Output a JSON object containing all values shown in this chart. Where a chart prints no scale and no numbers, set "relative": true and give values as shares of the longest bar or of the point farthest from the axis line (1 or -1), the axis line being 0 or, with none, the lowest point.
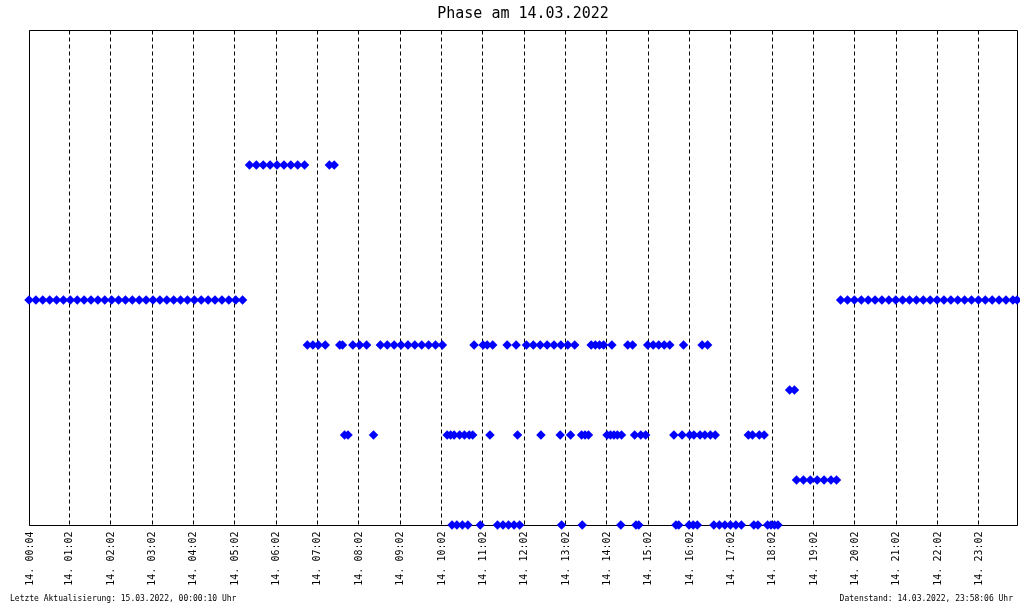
{
  "chart_data": {
    "type": "scatter",
    "title": "Phase am 14.03.2022",
    "color": "#0000ff",
    "marker": "diamond",
    "grid": "x",
    "relative": true,
    "annotations": [
      "Letzte Aktualisierung: 15.03.2022, 00:00:10 Uhr",
      "Datenstand: 14.03.2022, 23:58:06 Uhr"
    ],
    "xlim": [
      "2022-03-14T00:04",
      "2022-03-14T23:58"
    ],
    "xticks": [
      {
        "value": "2022-03-14T00:04",
        "label": "14. 00:04"
      },
      {
        "value": "2022-03-14T01:02",
        "label": "14. 01:02"
      },
      {
        "value": "2022-03-14T02:02",
        "label": "14. 02:02"
      },
      {
        "value": "2022-03-14T03:02",
        "label": "14. 03:02"
      },
      {
        "value": "2022-03-14T04:02",
        "label": "14. 04:02"
      },
      {
        "value": "2022-03-14T05:02",
        "label": "14. 05:02"
      },
      {
        "value": "2022-03-14T06:02",
        "label": "14. 06:02"
      },
      {
        "value": "2022-03-14T07:02",
        "label": "14. 07:02"
      },
      {
        "value": "2022-03-14T08:02",
        "label": "14. 08:02"
      },
      {
        "value": "2022-03-14T09:02",
        "label": "14. 09:02"
      },
      {
        "value": "2022-03-14T10:02",
        "label": "14. 10:02"
      },
      {
        "value": "2022-03-14T11:02",
        "label": "14. 11:02"
      },
      {
        "value": "2022-03-14T12:02",
        "label": "14. 12:02"
      },
      {
        "value": "2022-03-14T13:02",
        "label": "14. 13:02"
      },
      {
        "value": "2022-03-14T14:02",
        "label": "14. 14:02"
      },
      {
        "value": "2022-03-14T15:02",
        "label": "14. 15:02"
      },
      {
        "value": "2022-03-14T16:02",
        "label": "14. 16:02"
      },
      {
        "value": "2022-03-14T17:02",
        "label": "14. 17:02"
      },
      {
        "value": "2022-03-14T18:02",
        "label": "14. 18:02"
      },
      {
        "value": "2022-03-14T19:02",
        "label": "14. 19:02"
      },
      {
        "value": "2022-03-14T20:02",
        "label": "14. 20:02"
      },
      {
        "value": "2022-03-14T21:02",
        "label": "14. 21:02"
      },
      {
        "value": "2022-03-14T22:02",
        "label": "14. 22:02"
      },
      {
        "value": "2022-03-14T23:02",
        "label": "14. 23:02"
      }
    ],
    "x": [
      "2022-03-14T00:04",
      "2022-03-14T00:14",
      "2022-03-14T00:24",
      "2022-03-14T00:34",
      "2022-03-14T00:44",
      "2022-03-14T00:54",
      "2022-03-14T01:04",
      "2022-03-14T01:14",
      "2022-03-14T01:24",
      "2022-03-14T01:34",
      "2022-03-14T01:44",
      "2022-03-14T01:54",
      "2022-03-14T02:04",
      "2022-03-14T02:14",
      "2022-03-14T02:24",
      "2022-03-14T02:34",
      "2022-03-14T02:44",
      "2022-03-14T02:54",
      "2022-03-14T03:04",
      "2022-03-14T03:14",
      "2022-03-14T03:24",
      "2022-03-14T03:34",
      "2022-03-14T03:44",
      "2022-03-14T03:54",
      "2022-03-14T04:04",
      "2022-03-14T04:14",
      "2022-03-14T04:24",
      "2022-03-14T04:34",
      "2022-03-14T04:44",
      "2022-03-14T04:54",
      "2022-03-14T05:04",
      "2022-03-14T05:14",
      "2022-03-14T05:24",
      "2022-03-14T05:34",
      "2022-03-14T05:44",
      "2022-03-14T05:54",
      "2022-03-14T06:04",
      "2022-03-14T06:14",
      "2022-03-14T06:24",
      "2022-03-14T06:34",
      "2022-03-14T06:44",
      "2022-03-14T06:48",
      "2022-03-14T06:56",
      "2022-03-14T07:04",
      "2022-03-14T07:14",
      "2022-03-14T07:20",
      "2022-03-14T07:27",
      "2022-03-14T07:35",
      "2022-03-14T07:39",
      "2022-03-14T07:42",
      "2022-03-14T07:47",
      "2022-03-14T07:54",
      "2022-03-14T08:04",
      "2022-03-14T08:14",
      "2022-03-14T08:24",
      "2022-03-14T08:34",
      "2022-03-14T08:44",
      "2022-03-14T08:54",
      "2022-03-14T09:04",
      "2022-03-14T09:14",
      "2022-03-14T09:24",
      "2022-03-14T09:34",
      "2022-03-14T09:44",
      "2022-03-14T09:54",
      "2022-03-14T10:04",
      "2022-03-14T10:11",
      "2022-03-14T10:16",
      "2022-03-14T10:18",
      "2022-03-14T10:21",
      "2022-03-14T10:25",
      "2022-03-14T10:29",
      "2022-03-14T10:33",
      "2022-03-14T10:36",
      "2022-03-14T10:41",
      "2022-03-14T10:43",
      "2022-03-14T10:48",
      "2022-03-14T10:50",
      "2022-03-14T10:59",
      "2022-03-14T11:03",
      "2022-03-14T11:09",
      "2022-03-14T11:13",
      "2022-03-14T11:17",
      "2022-03-14T11:24",
      "2022-03-14T11:32",
      "2022-03-14T11:38",
      "2022-03-14T11:40",
      "2022-03-14T11:48",
      "2022-03-14T11:51",
      "2022-03-14T11:53",
      "2022-03-14T11:56",
      "2022-03-14T12:06",
      "2022-03-14T12:16",
      "2022-03-14T12:26",
      "2022-03-14T12:27",
      "2022-03-14T12:36",
      "2022-03-14T12:46",
      "2022-03-14T12:55",
      "2022-03-14T12:56",
      "2022-03-14T12:57",
      "2022-03-14T13:06",
      "2022-03-14T13:10",
      "2022-03-14T13:16",
      "2022-03-14T13:26",
      "2022-03-14T13:27",
      "2022-03-14T13:31",
      "2022-03-14T13:36",
      "2022-03-14T13:40",
      "2022-03-14T13:46",
      "2022-03-14T13:52",
      "2022-03-14T13:58",
      "2022-03-14T14:03",
      "2022-03-14T14:08",
      "2022-03-14T14:10",
      "2022-03-14T14:13",
      "2022-03-14T14:18",
      "2022-03-14T14:23",
      "2022-03-14T14:24",
      "2022-03-14T14:33",
      "2022-03-14T14:40",
      "2022-03-14T14:43",
      "2022-03-14T14:45",
      "2022-03-14T14:49",
      "2022-03-14T14:52",
      "2022-03-14T14:59",
      "2022-03-14T15:02",
      "2022-03-14T15:10",
      "2022-03-14T15:18",
      "2022-03-14T15:26",
      "2022-03-14T15:34",
      "2022-03-14T15:40",
      "2022-03-14T15:43",
      "2022-03-14T15:47",
      "2022-03-14T15:52",
      "2022-03-14T15:54",
      "2022-03-14T16:02",
      "2022-03-14T16:03",
      "2022-03-14T16:08",
      "2022-03-14T16:09",
      "2022-03-14T16:14",
      "2022-03-14T16:18",
      "2022-03-14T16:21",
      "2022-03-14T16:25",
      "2022-03-14T16:29",
      "2022-03-14T16:33",
      "2022-03-14T16:38",
      "2022-03-14T16:40",
      "2022-03-14T16:46",
      "2022-03-14T16:54",
      "2022-03-14T17:02",
      "2022-03-14T17:10",
      "2022-03-14T17:18",
      "2022-03-14T17:28",
      "2022-03-14T17:34",
      "2022-03-14T17:36",
      "2022-03-14T17:42",
      "2022-03-14T17:44",
      "2022-03-14T17:51",
      "2022-03-14T17:56",
      "2022-03-14T18:01",
      "2022-03-14T18:06",
      "2022-03-14T18:11",
      "2022-03-14T18:28",
      "2022-03-14T18:35",
      "2022-03-14T18:38",
      "2022-03-14T18:48",
      "2022-03-14T18:58",
      "2022-03-14T19:08",
      "2022-03-14T19:18",
      "2022-03-14T19:28",
      "2022-03-14T19:36",
      "2022-03-14T19:42",
      "2022-03-14T19:52",
      "2022-03-14T20:02",
      "2022-03-14T20:12",
      "2022-03-14T20:22",
      "2022-03-14T20:32",
      "2022-03-14T20:42",
      "2022-03-14T20:52",
      "2022-03-14T21:02",
      "2022-03-14T21:12",
      "2022-03-14T21:22",
      "2022-03-14T21:32",
      "2022-03-14T21:42",
      "2022-03-14T21:52",
      "2022-03-14T22:02",
      "2022-03-14T22:12",
      "2022-03-14T22:22",
      "2022-03-14T22:32",
      "2022-03-14T22:42",
      "2022-03-14T22:52",
      "2022-03-14T23:02",
      "2022-03-14T23:12",
      "2022-03-14T23:22",
      "2022-03-14T23:32",
      "2022-03-14T23:42",
      "2022-03-14T23:52",
      "2022-03-14T23:58"
    ],
    "values": [
      0.625,
      0.625,
      0.625,
      0.625,
      0.625,
      0.625,
      0.625,
      0.625,
      0.625,
      0.625,
      0.625,
      0.625,
      0.625,
      0.625,
      0.625,
      0.625,
      0.625,
      0.625,
      0.625,
      0.625,
      0.625,
      0.625,
      0.625,
      0.625,
      0.625,
      0.625,
      0.625,
      0.625,
      0.625,
      0.625,
      0.625,
      0.625,
      1,
      1,
      1,
      1,
      1,
      1,
      1,
      1,
      1,
      0.5,
      0.5,
      0.5,
      0.5,
      1,
      1,
      0.5,
      0.5,
      0.25,
      0.25,
      0.5,
      0.5,
      0.5,
      0.25,
      0.5,
      0.5,
      0.5,
      0.5,
      0.5,
      0.5,
      0.5,
      0.5,
      0.5,
      0.5,
      0.25,
      0.25,
      0,
      0.25,
      0,
      0.25,
      0,
      0.25,
      0,
      0.25,
      0.25,
      0.5,
      0,
      0.5,
      0.5,
      0.25,
      0.5,
      0,
      0,
      0.5,
      0,
      0,
      0.5,
      0.25,
      0,
      0.5,
      0.5,
      0.5,
      0.25,
      0.5,
      0.5,
      0.25,
      0.5,
      0,
      0.5,
      0.25,
      0.5,
      0.25,
      0,
      0.25,
      0.25,
      0.5,
      0.5,
      0.5,
      0.5,
      0.25,
      0.25,
      0.5,
      0.25,
      0.25,
      0,
      0.25,
      0.5,
      0.5,
      0.25,
      0,
      0,
      0.25,
      0.25,
      0.5,
      0.5,
      0.5,
      0.5,
      0.5,
      0.25,
      0,
      0,
      0.25,
      0.5,
      0,
      0.25,
      0,
      0.25,
      0,
      0.25,
      0.5,
      0.25,
      0.5,
      0.25,
      0,
      0.25,
      0,
      0,
      0,
      0,
      0,
      0.25,
      0.25,
      0,
      0,
      0.25,
      0.25,
      0,
      0,
      0,
      0,
      0.375,
      0.375,
      0.125,
      0.125,
      0.125,
      0.125,
      0.125,
      0.125,
      0.125,
      0.625,
      0.625,
      0.625,
      0.625,
      0.625,
      0.625,
      0.625,
      0.625,
      0.625,
      0.625,
      0.625,
      0.625,
      0.625,
      0.625,
      0.625,
      0.625,
      0.625,
      0.625,
      0.625,
      0.625,
      0.625,
      0.625,
      0.625,
      0.625,
      0.625,
      0.625,
      0.625
    ]
  }
}
